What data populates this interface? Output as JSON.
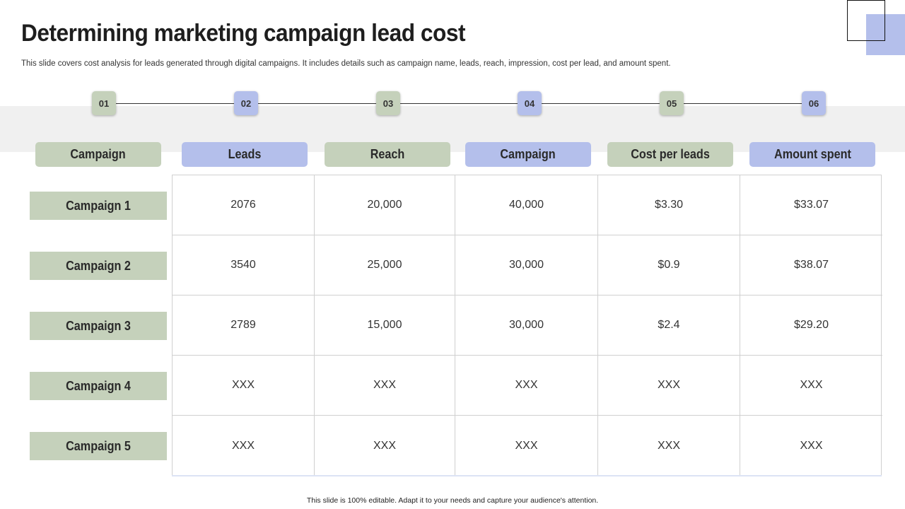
{
  "title": "Determining marketing campaign lead cost",
  "subtitle": "This slide covers cost analysis for leads generated through digital campaigns. It includes details such as campaign name, leads, reach, impression, cost per lead, and amount spent.",
  "steps": [
    "01",
    "02",
    "03",
    "04",
    "05",
    "06"
  ],
  "headers": [
    "Campaign",
    "Leads",
    "Reach",
    "Campaign",
    "Cost per leads",
    "Amount spent"
  ],
  "rows": [
    {
      "label": "Campaign 1",
      "cells": [
        "2076",
        "20,000",
        "40,000",
        "$3.30",
        "$33.07"
      ]
    },
    {
      "label": "Campaign 2",
      "cells": [
        "3540",
        "25,000",
        "30,000",
        "$0.9",
        "$38.07"
      ]
    },
    {
      "label": "Campaign 3",
      "cells": [
        "2789",
        "15,000",
        "30,000",
        "$2.4",
        "$29.20"
      ]
    },
    {
      "label": "Campaign 4",
      "cells": [
        "XXX",
        "XXX",
        "XXX",
        "XXX",
        "XXX"
      ]
    },
    {
      "label": "Campaign 5",
      "cells": [
        "XXX",
        "XXX",
        "XXX",
        "XXX",
        "XXX"
      ]
    }
  ],
  "footer": "This slide is 100% editable. Adapt it to your needs and capture your audience's attention.",
  "colors": {
    "green": "#c5d1bb",
    "blue": "#b4bfeb",
    "band": "#f0f0f0"
  }
}
